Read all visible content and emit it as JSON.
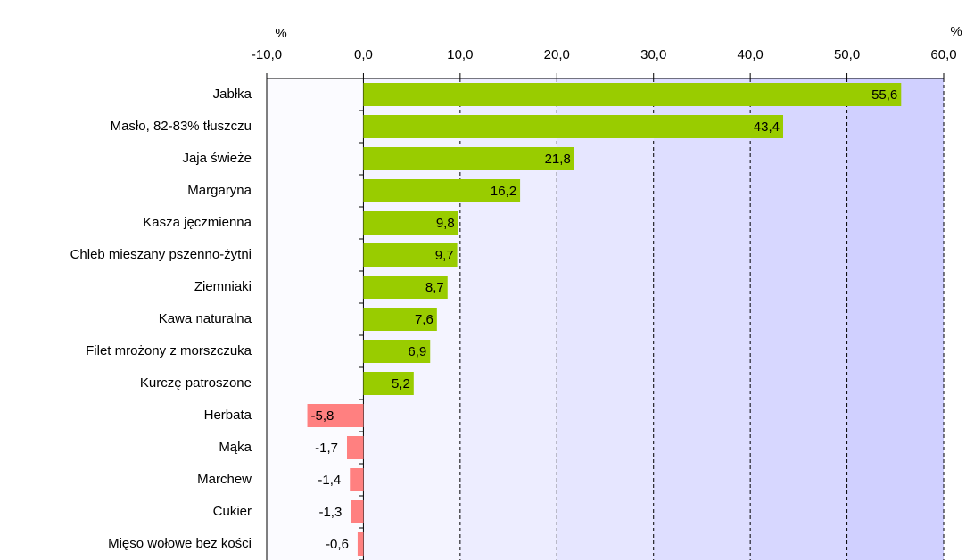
{
  "chart_data": {
    "type": "hbar",
    "x_unit_labels": [
      "%",
      "%"
    ],
    "categories": [
      "Jabłka",
      "Masło, 82-83% tłuszczu",
      "Jaja świeże",
      "Margaryna",
      "Kasza jęczmienna",
      "Chleb mieszany pszenno-żytni",
      "Ziemniaki",
      "Kawa naturalna",
      "Filet mrożony z morszczuka",
      "Kurczę patroszone",
      "Herbata",
      "Mąka",
      "Marchew",
      "Cukier",
      "Mięso wołowe bez kości"
    ],
    "values": [
      55.6,
      43.4,
      21.8,
      16.2,
      9.8,
      9.7,
      8.7,
      7.6,
      6.9,
      5.2,
      -5.8,
      -1.7,
      -1.4,
      -1.3,
      -0.6
    ],
    "value_labels": [
      "55,6",
      "43,4",
      "21,8",
      "16,2",
      "9,8",
      "9,7",
      "8,7",
      "7,6",
      "6,9",
      "5,2",
      "-5,8",
      "-1,7",
      "-1,4",
      "-1,3",
      "-0,6"
    ],
    "color_positive": "#99cc00",
    "color_negative": "#ff8080",
    "xlim": [
      -10,
      60
    ],
    "xticks": [
      {
        "value": -10,
        "label": "-10,0"
      },
      {
        "value": 0,
        "label": "0,0"
      },
      {
        "value": 10,
        "label": "10,0"
      },
      {
        "value": 20,
        "label": "20,0"
      },
      {
        "value": 30,
        "label": "30,0"
      },
      {
        "value": 40,
        "label": "40,0"
      },
      {
        "value": 50,
        "label": "50,0"
      },
      {
        "value": 60,
        "label": "60,0"
      }
    ],
    "grid": true
  }
}
